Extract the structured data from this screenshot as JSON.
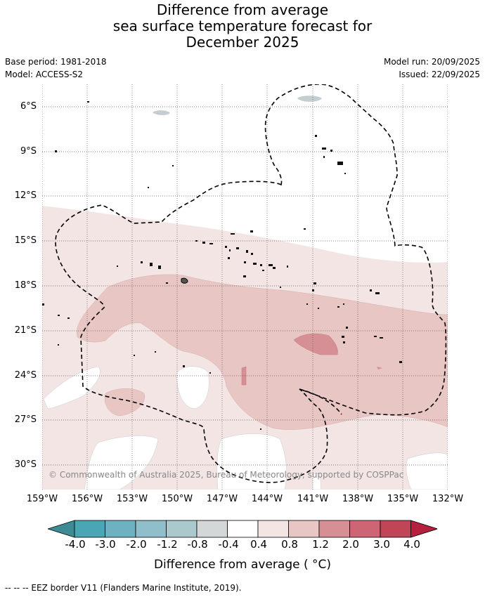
{
  "title": {
    "line1": "Difference from average",
    "line2": "sea surface temperature forecast for",
    "line3": "December 2025"
  },
  "meta_left": {
    "base_period": "Base period: 1981-2018",
    "model": "Model: ACCESS-S2"
  },
  "meta_right": {
    "model_run": "Model run: 20/09/2025",
    "issued": "Issued: 22/09/2025"
  },
  "map": {
    "extent": {
      "lon_west_deg": 159,
      "lon_east_deg": 132,
      "lat_north_deg": -5.4,
      "lat_south_deg": -31.6
    },
    "lat_ticks": [
      "6°S",
      "9°S",
      "12°S",
      "15°S",
      "18°S",
      "21°S",
      "24°S",
      "27°S",
      "30°S"
    ],
    "lon_ticks": [
      "159°W",
      "156°W",
      "153°W",
      "150°W",
      "147°W",
      "144°W",
      "141°W",
      "138°W",
      "135°W",
      "132°W"
    ],
    "copyright": "© Commonwealth of Australia 2025, Bureau of Meteorology, supported by COSPPac",
    "gridlines": true
  },
  "legend": {
    "title": "Difference from average ( °C)",
    "labels": [
      "-4.0",
      "-3.0",
      "-2.0",
      "-1.2",
      "-0.8",
      "-0.4",
      "0.4",
      "0.8",
      "1.2",
      "2.0",
      "3.0",
      "4.0"
    ],
    "colors": [
      "#3e8b96",
      "#4aa6b5",
      "#6eb2c1",
      "#8fbfca",
      "#a9c9cd",
      "#d3d7d8",
      "#ffffff",
      "#f3e5e4",
      "#e8c6c3",
      "#d68f95",
      "#cd6575",
      "#c04657",
      "#b4213f"
    ]
  },
  "footer": "--  --  -- EEZ border V11 (Flanders Marine Institute, 2019)."
}
